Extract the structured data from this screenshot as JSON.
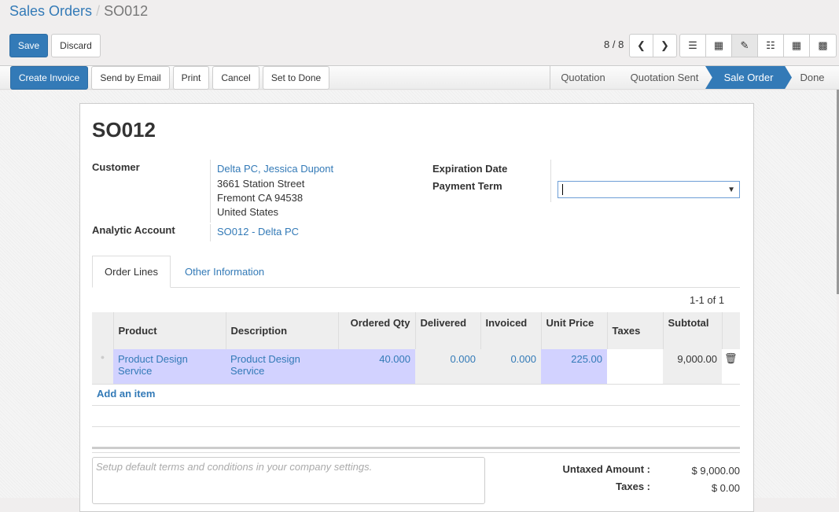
{
  "breadcrumb": {
    "parent": "Sales Orders",
    "separator": "/",
    "current": "SO012"
  },
  "toolbar": {
    "save": "Save",
    "discard": "Discard",
    "pager": "8 / 8"
  },
  "views": [
    "list-icon",
    "kanban-icon",
    "form-icon",
    "calendar-icon",
    "pivot-icon",
    "graph-icon"
  ],
  "actions": {
    "create_invoice": "Create Invoice",
    "send_email": "Send by Email",
    "print": "Print",
    "cancel": "Cancel",
    "set_done": "Set to Done"
  },
  "statusbar": [
    {
      "label": "Quotation",
      "active": false
    },
    {
      "label": "Quotation Sent",
      "active": false
    },
    {
      "label": "Sale Order",
      "active": true
    },
    {
      "label": "Done",
      "active": false
    }
  ],
  "colors": {
    "primary": "#337ab7",
    "highlight": "#d2d2ff"
  },
  "form": {
    "title": "SO012",
    "customer_label": "Customer",
    "customer_name": "Delta PC, Jessica Dupont",
    "address": [
      "3661 Station Street",
      "Fremont CA 94538",
      "United States"
    ],
    "analytic_label": "Analytic Account",
    "analytic_value": "SO012 - Delta PC",
    "expiration_label": "Expiration Date",
    "payment_term_label": "Payment Term",
    "payment_term_value": ""
  },
  "tabs": [
    {
      "label": "Order Lines",
      "active": true
    },
    {
      "label": "Other Information",
      "active": false
    }
  ],
  "lines": {
    "pager": "1-1 of 1",
    "columns": [
      "Product",
      "Description",
      "Ordered Qty",
      "Delivered",
      "Invoiced",
      "Unit Price",
      "Taxes",
      "Subtotal"
    ],
    "rows": [
      {
        "product": "Product Design Service",
        "description": "Product Design Service",
        "ordered_qty": "40.000",
        "delivered": "0.000",
        "invoiced": "0.000",
        "unit_price": "225.00",
        "taxes": "",
        "subtotal": "9,000.00"
      }
    ],
    "add_item": "Add an item"
  },
  "footer": {
    "terms_placeholder": "Setup default terms and conditions in your company settings.",
    "untaxed_label": "Untaxed Amount :",
    "untaxed_value": "$ 9,000.00",
    "taxes_label": "Taxes :",
    "taxes_value": "$ 0.00"
  }
}
